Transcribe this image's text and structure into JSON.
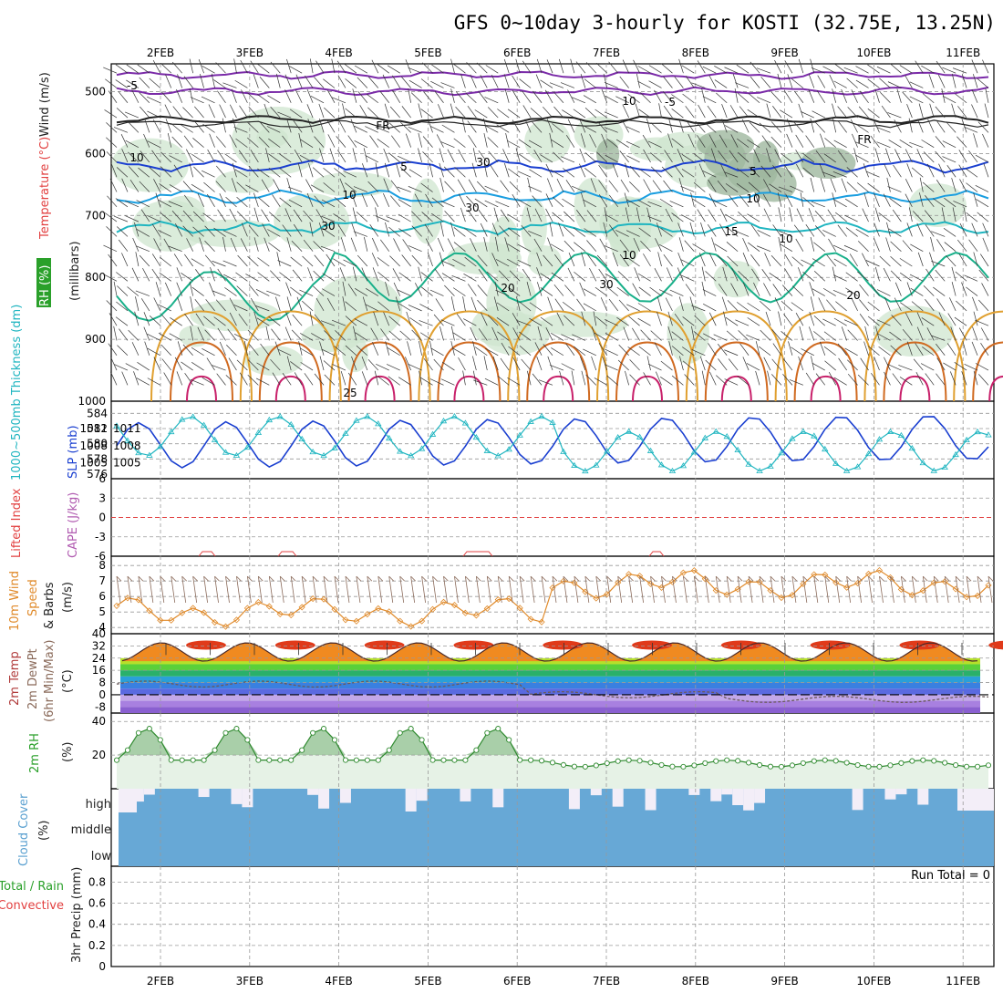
{
  "title": "GFS 0~10day 3-hourly for KOSTI (32.75E, 13.25N)",
  "dates": [
    "2FEB",
    "3FEB",
    "4FEB",
    "5FEB",
    "6FEB",
    "7FEB",
    "8FEB",
    "9FEB",
    "10FEB",
    "11FEB"
  ],
  "panels": {
    "upper": {
      "label_rh": "RH (%)",
      "label_temp": "Temperature (°C)",
      "label_wind": "Wind (m/s)",
      "label_units": "(millibars)",
      "yticks": [
        "500",
        "600",
        "700",
        "800",
        "900",
        "1000"
      ],
      "contour_labels": [
        "-5",
        "-5",
        "FR",
        "FR",
        "5",
        "5",
        "10",
        "10",
        "15",
        "20",
        "20",
        "25",
        "10",
        "10",
        "10",
        "30",
        "30",
        "30",
        "10",
        "30"
      ]
    },
    "thickness": {
      "label_left": "1000~500mb Thickness (dm)",
      "label_right": "SLP (mb)",
      "yticks_left": [
        "584",
        "582",
        "580",
        "578",
        "576"
      ],
      "yticks_right": [
        "1011",
        "1008",
        "1005"
      ]
    },
    "cape": {
      "label_cape": "CAPE (J/kg)",
      "label_li": "Lifted Index",
      "yticks": [
        "6",
        "3",
        "0",
        "-3",
        "-6"
      ]
    },
    "wind10": {
      "label1": "10m Wind",
      "label2": "Speed",
      "label3": "& Barbs",
      "label_units": "(m/s)",
      "yticks": [
        "8",
        "7",
        "6",
        "5",
        "4"
      ]
    },
    "temp2m": {
      "label1": "2m Temp",
      "label2": "2m DewPt",
      "label3": "(6hr Min/Max)",
      "label_units": "(°C)",
      "yticks": [
        "40",
        "32",
        "24",
        "16",
        "8",
        "0",
        "-8"
      ]
    },
    "rh2m": {
      "label1": "2m RH",
      "label_units": "(%)",
      "yticks": [
        "40",
        "20"
      ]
    },
    "cloud": {
      "label1": "Cloud Cover",
      "label_units": "(%)",
      "levels": [
        "high",
        "middle",
        "low"
      ]
    },
    "precip": {
      "label_total": "Total / Rain",
      "label_conv": "Convective",
      "label_axis": "3hr Precip (mm)",
      "yticks": [
        "0.8",
        "0.6",
        "0.4",
        "0.2",
        "0"
      ],
      "run_total": "Run Total = 0"
    }
  },
  "colors": {
    "slp": "#1a3fd0",
    "thickness": "#1fb5c0",
    "wind10": "#e08a2a",
    "rh_fill": "#a8cfa8",
    "rh_line": "#2f8a2f",
    "cloud": "#67a8d6",
    "dewpt": "#8a6a5a",
    "li": "#e24040",
    "grid": "#999999"
  },
  "chart_data": [
    {
      "type": "line",
      "title": "1000~500mb Thickness / SLP",
      "x": [
        "2FEB",
        "3FEB",
        "4FEB",
        "5FEB",
        "6FEB",
        "7FEB",
        "8FEB",
        "9FEB",
        "10FEB",
        "11FEB"
      ],
      "series": [
        {
          "name": "SLP (mb)",
          "values": [
            1010,
            1012,
            1011,
            1004,
            1004,
            1009,
            1012,
            1012,
            1011,
            1014
          ]
        },
        {
          "name": "1000~500mb Thickness (dm)",
          "values": [
            577,
            580,
            582,
            584,
            583,
            580,
            579,
            578,
            579,
            577
          ]
        }
      ]
    },
    {
      "type": "line",
      "title": "10m Wind Speed",
      "x": [
        "2FEB",
        "3FEB",
        "4FEB",
        "5FEB",
        "6FEB",
        "7FEB",
        "8FEB",
        "9FEB",
        "10FEB",
        "11FEB"
      ],
      "series": [
        {
          "name": "10m Wind Speed (m/s)",
          "values": [
            5.5,
            5.0,
            5.0,
            4.5,
            5.0,
            7.5,
            7.0,
            6.5,
            6.0,
            7.0
          ]
        }
      ],
      "ylim": [
        3.5,
        8.5
      ]
    },
    {
      "type": "line",
      "title": "2m Temp / 2m DewPt",
      "x": [
        "2FEB",
        "3FEB",
        "4FEB",
        "5FEB",
        "6FEB",
        "7FEB",
        "8FEB",
        "9FEB",
        "10FEB",
        "11FEB"
      ],
      "series": [
        {
          "name": "2m Temp max (°C)",
          "values": [
            30,
            33,
            33,
            35,
            35,
            34,
            33,
            33,
            33,
            33
          ]
        },
        {
          "name": "2m Temp min (°C)",
          "values": [
            23,
            22,
            22,
            23,
            23,
            22,
            22,
            21,
            21,
            21
          ]
        },
        {
          "name": "2m DewPt (°C)",
          "values": [
            6,
            10,
            8,
            9,
            8,
            0,
            0,
            -3,
            -2,
            -6
          ]
        }
      ],
      "ylim": [
        -12,
        40
      ]
    },
    {
      "type": "area",
      "title": "2m RH",
      "x": [
        "2FEB",
        "3FEB",
        "4FEB",
        "5FEB",
        "6FEB",
        "7FEB",
        "8FEB",
        "9FEB",
        "10FEB",
        "11FEB"
      ],
      "series": [
        {
          "name": "2m RH (%)",
          "values": [
            32,
            40,
            40,
            32,
            35,
            15,
            18,
            13,
            14,
            13
          ]
        }
      ],
      "ylim": [
        0,
        45
      ]
    },
    {
      "type": "bar",
      "title": "3hr Precip",
      "x": [
        "2FEB",
        "3FEB",
        "4FEB",
        "5FEB",
        "6FEB",
        "7FEB",
        "8FEB",
        "9FEB",
        "10FEB",
        "11FEB"
      ],
      "series": [
        {
          "name": "3hr Precip (mm)",
          "values": [
            0,
            0,
            0,
            0,
            0,
            0,
            0,
            0,
            0,
            0
          ]
        }
      ],
      "ylim": [
        0,
        1
      ]
    }
  ]
}
